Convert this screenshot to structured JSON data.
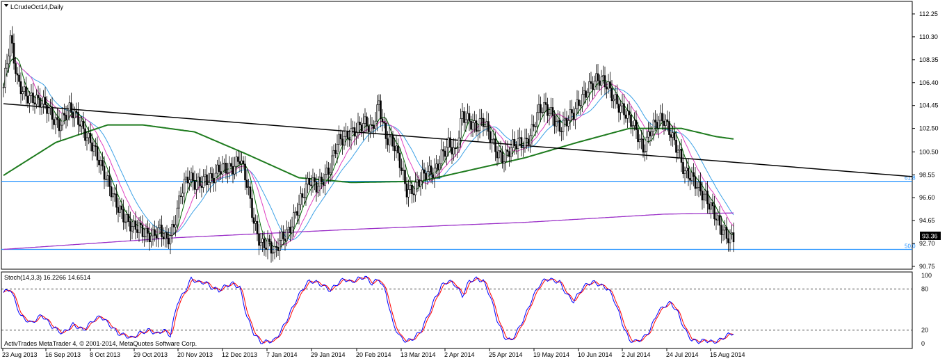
{
  "main_panel": {
    "title": "LCrudeOct14,Daily",
    "menu_icon": "dropdown-triangle-icon",
    "price_axis": [
      "112.25",
      "110.30",
      "108.35",
      "106.40",
      "104.45",
      "102.50",
      "100.50",
      "98.55",
      "96.60",
      "94.65",
      "92.70",
      "90.75"
    ],
    "current_price": "93.36",
    "fib_labels": {
      "upper": "61.8",
      "lower": "50.0"
    }
  },
  "stoch_panel": {
    "title": "Stoch(14,3,3) 16.2266 14.6514",
    "axis": [
      "100",
      "80",
      "20",
      "0"
    ],
    "copyright": "ActivTrades MetaTrader 4, © 2001-2014, MetaQuotes Software Corp."
  },
  "time_axis": [
    "23 Aug 2013",
    "16 Sep 2013",
    "8 Oct 2013",
    "29 Oct 2013",
    "20 Nov 2013",
    "12 Dec 2013",
    "7 Jan 2014",
    "29 Jan 2014",
    "20 Feb 2014",
    "13 Mar 2014",
    "2 Apr 2014",
    "25 Apr 2014",
    "19 May 2014",
    "10 Jun 2014",
    "2 Jul 2014",
    "24 Jul 2014",
    "15 Aug 2014"
  ],
  "colors": {
    "candle_up": "#000000",
    "candle_down": "#000000",
    "ma_fast": "#006400",
    "ma_mid": "#e040c0",
    "ma_slow": "#3aa0e6",
    "ma_long": "#1e7b1e",
    "ma_vlong": "#9b30c8",
    "trendline": "#000000",
    "hline": "#1e90ff",
    "stoch_k": "#0000ff",
    "stoch_d": "#ff0000"
  },
  "chart_data": {
    "type": "candlestick",
    "symbol": "LCrudeOct14",
    "timeframe": "Daily",
    "ylim": [
      90.0,
      113.0
    ],
    "anchors": [
      [
        0,
        106.0
      ],
      [
        4,
        109.8
      ],
      [
        8,
        106.5
      ],
      [
        14,
        105.5
      ],
      [
        20,
        104.5
      ],
      [
        26,
        104.2
      ],
      [
        32,
        103.0
      ],
      [
        38,
        103.8
      ],
      [
        44,
        103.2
      ],
      [
        50,
        101.5
      ],
      [
        56,
        99.0
      ],
      [
        62,
        97.5
      ],
      [
        66,
        96.0
      ],
      [
        70,
        94.5
      ],
      [
        74,
        93.8
      ],
      [
        78,
        94.3
      ],
      [
        82,
        93.8
      ],
      [
        86,
        93.2
      ],
      [
        90,
        93.5
      ],
      [
        94,
        93.0
      ],
      [
        98,
        94.5
      ],
      [
        102,
        97.0
      ],
      [
        106,
        98.0
      ],
      [
        110,
        97.8
      ],
      [
        116,
        98.5
      ],
      [
        120,
        98.0
      ],
      [
        126,
        99.0
      ],
      [
        132,
        99.5
      ],
      [
        136,
        100.0
      ],
      [
        140,
        97.5
      ],
      [
        144,
        94.5
      ],
      [
        148,
        93.0
      ],
      [
        152,
        92.8
      ],
      [
        156,
        91.6
      ],
      [
        160,
        93.0
      ],
      [
        164,
        94.0
      ],
      [
        168,
        95.5
      ],
      [
        172,
        96.5
      ],
      [
        176,
        97.8
      ],
      [
        180,
        97.8
      ],
      [
        184,
        98.5
      ],
      [
        188,
        99.0
      ],
      [
        192,
        101.0
      ],
      [
        196,
        101.8
      ],
      [
        200,
        102.5
      ],
      [
        204,
        102.5
      ],
      [
        208,
        102.6
      ],
      [
        212,
        102.3
      ],
      [
        216,
        105.0
      ],
      [
        220,
        101.8
      ],
      [
        224,
        101.0
      ],
      [
        228,
        99.5
      ],
      [
        232,
        97.5
      ],
      [
        236,
        97.5
      ],
      [
        240,
        98.0
      ],
      [
        244,
        98.5
      ],
      [
        248,
        99.0
      ],
      [
        252,
        100.5
      ],
      [
        256,
        101.0
      ],
      [
        260,
        100.0
      ],
      [
        264,
        103.8
      ],
      [
        268,
        103.5
      ],
      [
        272,
        102.5
      ],
      [
        276,
        102.8
      ],
      [
        280,
        101.8
      ],
      [
        284,
        100.8
      ],
      [
        288,
        100.0
      ],
      [
        292,
        100.5
      ],
      [
        296,
        101.2
      ],
      [
        300,
        101.5
      ],
      [
        304,
        102.5
      ],
      [
        308,
        103.8
      ],
      [
        312,
        104.0
      ],
      [
        316,
        103.8
      ],
      [
        320,
        102.8
      ],
      [
        324,
        103.0
      ],
      [
        328,
        103.5
      ],
      [
        332,
        105.0
      ],
      [
        336,
        106.2
      ],
      [
        340,
        106.5
      ],
      [
        344,
        106.3
      ],
      [
        348,
        106.0
      ],
      [
        352,
        105.2
      ],
      [
        356,
        104.2
      ],
      [
        360,
        103.0
      ],
      [
        364,
        102.2
      ],
      [
        368,
        101.0
      ],
      [
        372,
        102.5
      ],
      [
        376,
        102.8
      ],
      [
        380,
        103.0
      ],
      [
        384,
        102.3
      ],
      [
        388,
        101.0
      ],
      [
        392,
        98.5
      ],
      [
        396,
        98.0
      ],
      [
        400,
        97.5
      ],
      [
        404,
        97.0
      ],
      [
        408,
        95.5
      ],
      [
        412,
        93.8
      ],
      [
        416,
        93.3
      ],
      [
        420,
        93.6
      ]
    ],
    "trendline": [
      [
        0,
        104.6
      ],
      [
        472,
        99.0
      ]
    ],
    "hlines": [
      {
        "label": "61.8",
        "y": 98.0
      },
      {
        "label": "50.0",
        "y": 92.2
      }
    ],
    "ma_long_anchors": [
      [
        0,
        98.5
      ],
      [
        30,
        101.3
      ],
      [
        60,
        102.8
      ],
      [
        80,
        102.8
      ],
      [
        110,
        102.2
      ],
      [
        140,
        100.3
      ],
      [
        170,
        98.3
      ],
      [
        200,
        97.9
      ],
      [
        240,
        98.0
      ],
      [
        270,
        99.0
      ],
      [
        300,
        100.0
      ],
      [
        330,
        101.3
      ],
      [
        360,
        102.5
      ],
      [
        390,
        102.5
      ],
      [
        410,
        101.8
      ],
      [
        420,
        101.6
      ]
    ],
    "ma_vlong_anchors": [
      [
        0,
        92.2
      ],
      [
        100,
        93.2
      ],
      [
        200,
        93.9
      ],
      [
        300,
        94.5
      ],
      [
        380,
        95.2
      ],
      [
        420,
        95.3
      ]
    ],
    "stoch_k_anchors": [
      [
        0,
        75
      ],
      [
        4,
        80
      ],
      [
        10,
        40
      ],
      [
        16,
        30
      ],
      [
        22,
        42
      ],
      [
        28,
        25
      ],
      [
        34,
        15
      ],
      [
        40,
        28
      ],
      [
        46,
        20
      ],
      [
        52,
        35
      ],
      [
        56,
        40
      ],
      [
        62,
        25
      ],
      [
        66,
        15
      ],
      [
        70,
        12
      ],
      [
        74,
        8
      ],
      [
        78,
        15
      ],
      [
        84,
        20
      ],
      [
        88,
        14
      ],
      [
        92,
        20
      ],
      [
        96,
        12
      ],
      [
        100,
        60
      ],
      [
        104,
        75
      ],
      [
        108,
        95
      ],
      [
        112,
        90
      ],
      [
        116,
        90
      ],
      [
        120,
        82
      ],
      [
        124,
        78
      ],
      [
        128,
        85
      ],
      [
        132,
        88
      ],
      [
        136,
        82
      ],
      [
        140,
        40
      ],
      [
        144,
        15
      ],
      [
        148,
        2
      ],
      [
        152,
        3
      ],
      [
        156,
        5
      ],
      [
        160,
        20
      ],
      [
        164,
        40
      ],
      [
        168,
        62
      ],
      [
        172,
        80
      ],
      [
        176,
        92
      ],
      [
        180,
        90
      ],
      [
        184,
        85
      ],
      [
        188,
        78
      ],
      [
        192,
        88
      ],
      [
        196,
        95
      ],
      [
        200,
        90
      ],
      [
        204,
        95
      ],
      [
        208,
        98
      ],
      [
        212,
        88
      ],
      [
        216,
        95
      ],
      [
        220,
        75
      ],
      [
        224,
        30
      ],
      [
        228,
        10
      ],
      [
        232,
        3
      ],
      [
        236,
        8
      ],
      [
        240,
        18
      ],
      [
        244,
        40
      ],
      [
        248,
        65
      ],
      [
        252,
        85
      ],
      [
        256,
        92
      ],
      [
        260,
        86
      ],
      [
        264,
        70
      ],
      [
        268,
        92
      ],
      [
        272,
        95
      ],
      [
        276,
        92
      ],
      [
        280,
        70
      ],
      [
        284,
        35
      ],
      [
        288,
        10
      ],
      [
        292,
        4
      ],
      [
        296,
        20
      ],
      [
        300,
        40
      ],
      [
        304,
        65
      ],
      [
        308,
        85
      ],
      [
        312,
        95
      ],
      [
        316,
        93
      ],
      [
        320,
        90
      ],
      [
        324,
        72
      ],
      [
        328,
        62
      ],
      [
        332,
        78
      ],
      [
        336,
        88
      ],
      [
        340,
        90
      ],
      [
        344,
        85
      ],
      [
        348,
        80
      ],
      [
        352,
        60
      ],
      [
        356,
        30
      ],
      [
        360,
        5
      ],
      [
        364,
        3
      ],
      [
        368,
        8
      ],
      [
        372,
        20
      ],
      [
        376,
        45
      ],
      [
        380,
        55
      ],
      [
        384,
        60
      ],
      [
        388,
        45
      ],
      [
        392,
        20
      ],
      [
        396,
        5
      ],
      [
        400,
        3
      ],
      [
        404,
        5
      ],
      [
        408,
        2
      ],
      [
        412,
        5
      ],
      [
        416,
        12
      ],
      [
        420,
        16
      ]
    ]
  }
}
